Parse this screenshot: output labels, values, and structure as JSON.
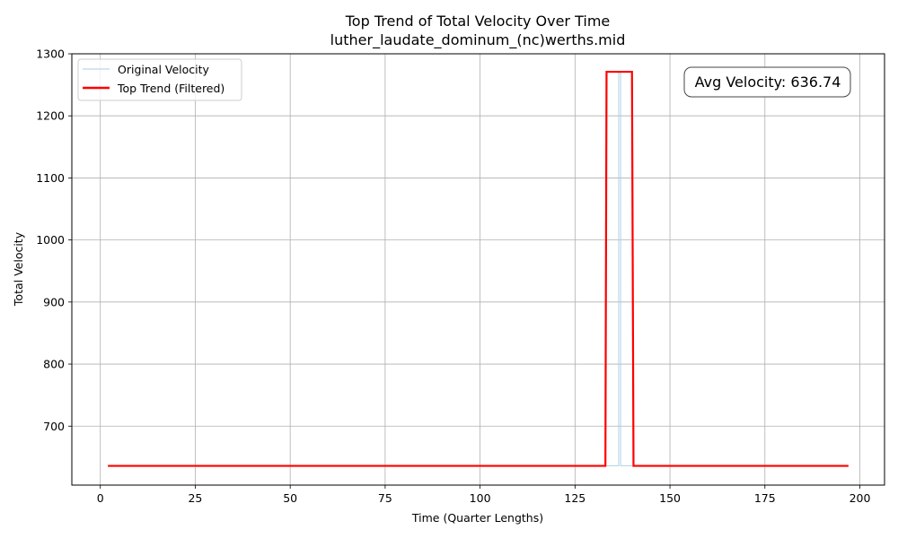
{
  "chart_data": {
    "type": "line",
    "title": "Top Trend of Total Velocity Over Time",
    "subtitle": "luther_laudate_dominum_(nc)werths.mid",
    "xlabel": "Time (Quarter Lengths)",
    "ylabel": "Total Velocity",
    "xlim": [
      -7.5,
      206.5
    ],
    "ylim": [
      605,
      1300
    ],
    "xticks": [
      0,
      25,
      50,
      75,
      100,
      125,
      150,
      175,
      200
    ],
    "yticks": [
      700,
      800,
      900,
      1000,
      1100,
      1200,
      1300
    ],
    "grid": true,
    "legend_position": "top-left",
    "annotation": "Avg Velocity: 636.74",
    "series": [
      {
        "name": "Original Velocity",
        "color": "#a6cee3",
        "style": "thin",
        "points": [
          [
            2,
            636
          ],
          [
            136.5,
            636
          ],
          [
            136.5,
            1270
          ],
          [
            137,
            1270
          ],
          [
            137,
            636
          ],
          [
            197,
            636
          ]
        ]
      },
      {
        "name": "Top Trend (Filtered)",
        "color": "#ff0000",
        "style": "thick",
        "points": [
          [
            2,
            636
          ],
          [
            133,
            636
          ],
          [
            133.3,
            1271
          ],
          [
            140,
            1271
          ],
          [
            140.4,
            636
          ],
          [
            197,
            636
          ]
        ]
      }
    ]
  }
}
